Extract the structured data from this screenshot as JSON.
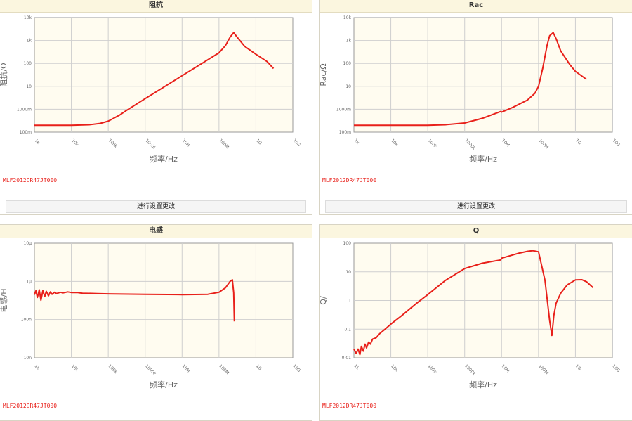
{
  "colors": {
    "curve": "#e8201a",
    "plot_bg": "#fffcf0",
    "grid": "#cfcfcf",
    "title_bg": "#fbf6df"
  },
  "settings_button": "进行设置更改",
  "part_number": "MLF2012DR47JT000",
  "chart_data": [
    {
      "type": "line",
      "title": "阻抗",
      "xlabel": "频率/Hz",
      "ylabel": "阻抗/Ω",
      "x_scale": "log",
      "y_scale": "log",
      "xticks": [
        "1k",
        "10k",
        "100k",
        "1000k",
        "10M",
        "100M",
        "1G",
        "10G"
      ],
      "yticks": [
        "100m",
        "1000m",
        "10",
        "100",
        "1k",
        "10k"
      ],
      "ylim": [
        0.1,
        10000
      ],
      "grid": true,
      "series": [
        {
          "x": [
            1000,
            3000,
            10000,
            30000,
            60000,
            100000,
            200000,
            300000,
            1000000,
            3000000,
            10000000,
            30000000,
            100000000,
            150000000,
            200000000,
            250000000,
            300000000,
            500000000,
            1000000000,
            2000000000,
            3000000000
          ],
          "y": [
            0.2,
            0.2,
            0.2,
            0.21,
            0.24,
            0.3,
            0.55,
            0.85,
            2.9,
            8.7,
            29,
            87,
            290,
            600,
            1400,
            2200,
            1500,
            550,
            250,
            120,
            60
          ]
        }
      ]
    },
    {
      "type": "line",
      "title": "Rac",
      "xlabel": "频率/Hz",
      "ylabel": "Rac/Ω",
      "x_scale": "log",
      "y_scale": "log",
      "xticks": [
        "1k",
        "10k",
        "100k",
        "1000k",
        "10M",
        "100M",
        "1G",
        "10G"
      ],
      "yticks": [
        "100m",
        "1000m",
        "10",
        "100",
        "1k",
        "10k"
      ],
      "ylim": [
        0.1,
        10000
      ],
      "grid": true,
      "series": [
        {
          "x": [
            1000,
            10000,
            100000,
            300000,
            1000000,
            3000000,
            9500000,
            10000000,
            20000000,
            50000000,
            80000000,
            100000000,
            130000000,
            170000000,
            200000000,
            250000000,
            300000000,
            400000000,
            700000000,
            1000000000,
            2000000000
          ],
          "y": [
            0.2,
            0.2,
            0.2,
            0.21,
            0.25,
            0.4,
            0.8,
            0.75,
            1.2,
            2.5,
            5,
            10,
            60,
            600,
            1600,
            2200,
            1200,
            350,
            90,
            45,
            20
          ]
        }
      ]
    },
    {
      "type": "line",
      "title": "电感",
      "xlabel": "频率/Hz",
      "ylabel": "电感/H",
      "x_scale": "log",
      "y_scale": "log",
      "xticks": [
        "1k",
        "10k",
        "100k",
        "1000k",
        "10M",
        "100M",
        "1G",
        "10G"
      ],
      "yticks": [
        "10n",
        "100n",
        "1μ",
        "10μ"
      ],
      "ylim": [
        1e-08,
        1e-05
      ],
      "grid": true,
      "series": [
        {
          "x": [
            1000,
            1100,
            1200,
            1350,
            1500,
            1700,
            1900,
            2100,
            2400,
            2700,
            3000,
            3500,
            4000,
            5000,
            6000,
            8000,
            10000,
            15000,
            20000,
            50000,
            100000,
            1000000,
            10000000,
            50000000,
            100000000,
            150000000,
            200000000,
            230000000,
            250000000,
            260000000
          ],
          "y": [
            4.5e-07,
            5.7e-07,
            3.8e-07,
            6e-07,
            3.2e-07,
            5.8e-07,
            4e-07,
            5.5e-07,
            4.2e-07,
            5.3e-07,
            4.6e-07,
            5.2e-07,
            4.8e-07,
            5.2e-07,
            5e-07,
            5.3e-07,
            5.1e-07,
            5.1e-07,
            4.9e-07,
            4.8e-07,
            4.7e-07,
            4.6e-07,
            4.5e-07,
            4.6e-07,
            5.2e-07,
            6.8e-07,
            1e-06,
            1.1e-06,
            5e-07,
            9e-08
          ]
        }
      ]
    },
    {
      "type": "line",
      "title": "Q",
      "xlabel": "频率/Hz",
      "ylabel": "Q/",
      "x_scale": "log",
      "y_scale": "log",
      "xticks": [
        "1k",
        "10k",
        "100k",
        "1000k",
        "10M",
        "100M",
        "1G",
        "10G"
      ],
      "yticks": [
        "0.01",
        "0.1",
        "1",
        "10",
        "100"
      ],
      "ylim": [
        0.01,
        100
      ],
      "grid": true,
      "series": [
        {
          "x": [
            1000,
            1150,
            1300,
            1450,
            1600,
            1800,
            2000,
            2200,
            2500,
            2800,
            3200,
            4000,
            5000,
            7000,
            10000,
            20000,
            50000,
            100000,
            300000,
            1000000,
            3000000,
            9500000,
            10000000,
            30000000,
            50000000,
            70000000,
            100000000,
            150000000,
            200000000,
            230000000,
            260000000,
            300000000,
            400000000,
            600000000,
            1000000000,
            1500000000,
            2000000000,
            3000000000
          ],
          "y": [
            0.02,
            0.014,
            0.02,
            0.013,
            0.025,
            0.017,
            0.03,
            0.022,
            0.035,
            0.03,
            0.045,
            0.05,
            0.07,
            0.1,
            0.15,
            0.3,
            0.8,
            1.6,
            5,
            13,
            20,
            26,
            30,
            45,
            52,
            55,
            50,
            5,
            0.2,
            0.06,
            0.3,
            0.8,
            1.8,
            3.5,
            5.2,
            5.3,
            4.5,
            2.8
          ]
        }
      ]
    }
  ]
}
